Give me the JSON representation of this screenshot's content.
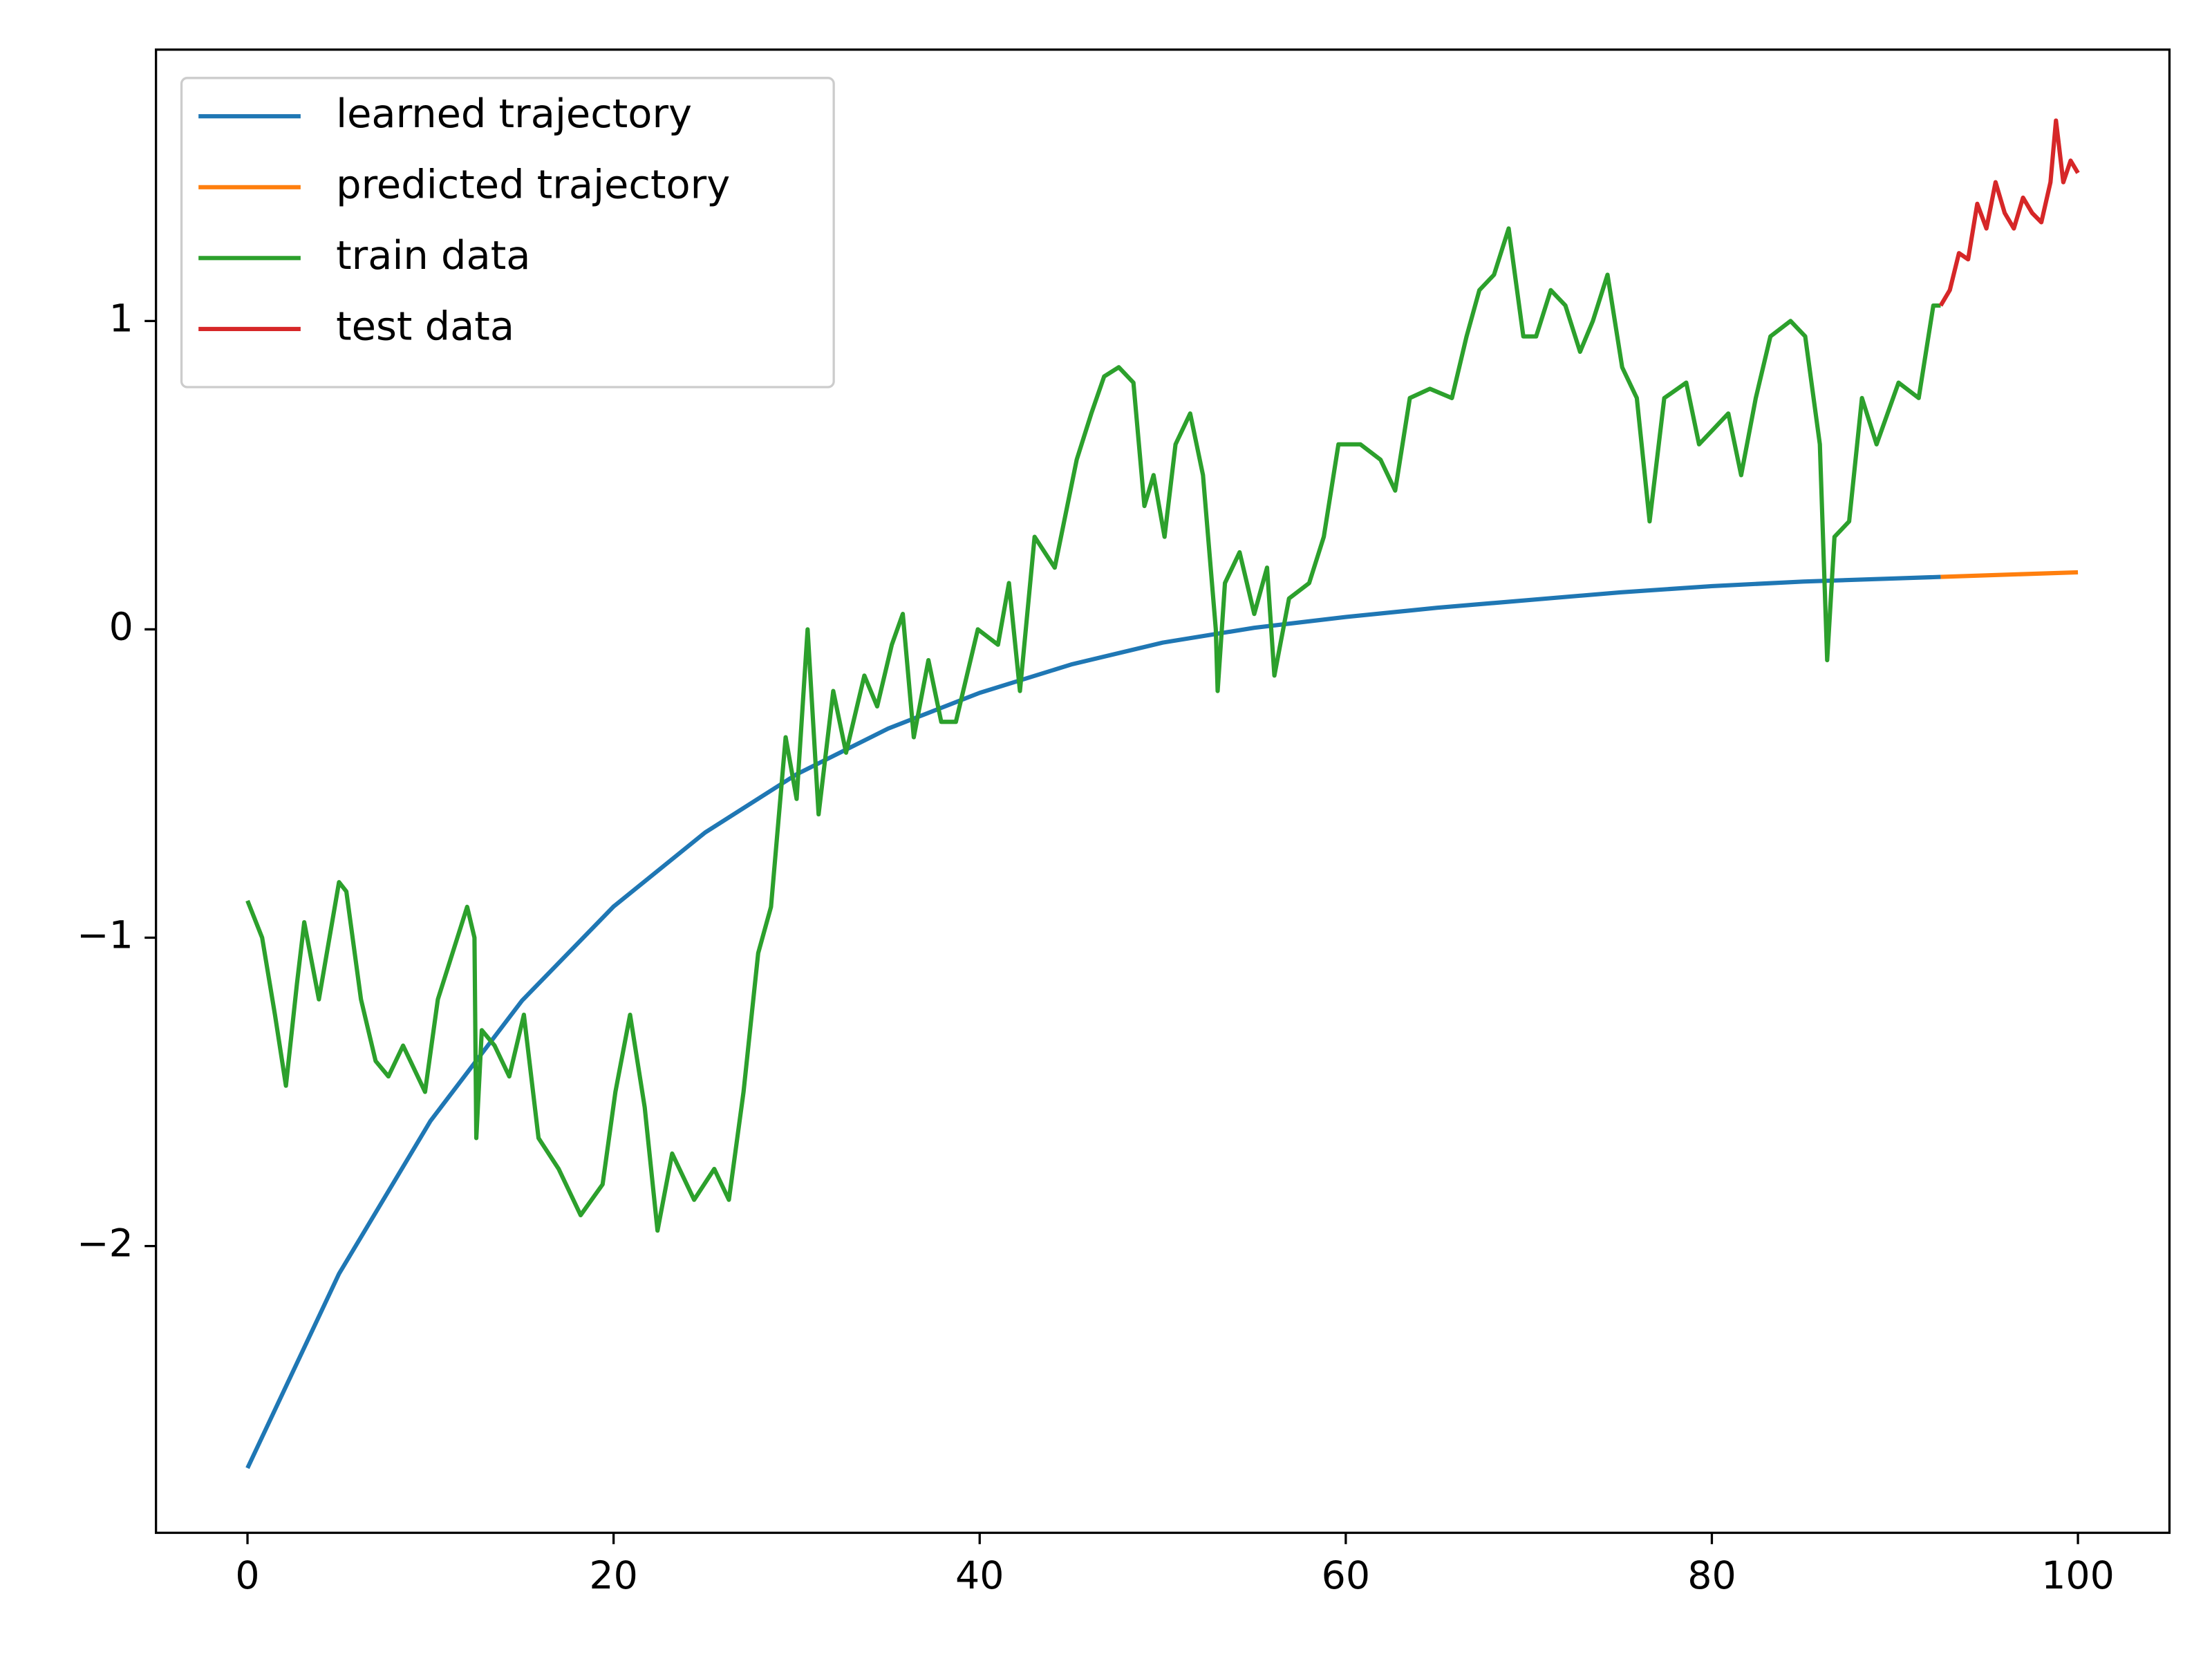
{
  "chart_data": {
    "type": "line",
    "xlim": [
      -5,
      105
    ],
    "ylim": [
      -2.93,
      1.88
    ],
    "xticks": [
      0,
      20,
      40,
      60,
      80,
      100
    ],
    "yticks": [
      {
        "value": -2,
        "label": "−2"
      },
      {
        "value": -1,
        "label": "−1"
      },
      0,
      1
    ],
    "grid": false,
    "legend": "upper left",
    "series": [
      {
        "name": "learned trajectory",
        "color": "#1f77b4",
        "x": [
          0,
          5,
          10,
          15,
          20,
          25,
          30,
          35,
          40,
          45,
          50,
          55,
          60,
          65,
          70,
          75,
          80,
          85,
          90,
          92.5
        ],
        "values": [
          -2.72,
          -2.09,
          -1.594,
          -1.204,
          -0.899,
          -0.659,
          -0.47,
          -0.322,
          -0.206,
          -0.114,
          -0.043,
          0.005,
          0.04,
          0.07,
          0.095,
          0.12,
          0.14,
          0.155,
          0.165,
          0.17
        ]
      },
      {
        "name": "predicted trajectory",
        "color": "#ff7f0e",
        "x": [
          92.5,
          100
        ],
        "values": [
          0.17,
          0.185
        ]
      },
      {
        "name": "train data",
        "color": "#2ca02c",
        "x": [
          0,
          0.8,
          1.5,
          2.1,
          2.7,
          3.1,
          3.9,
          5.0,
          5.4,
          6.2,
          7.0,
          7.7,
          8.5,
          9.7,
          10.4,
          11.2,
          12.0,
          12.4,
          12.5,
          12.8,
          13.5,
          14.3,
          15.1,
          15.9,
          17.0,
          18.2,
          19.4,
          20.1,
          20.9,
          21.7,
          22.4,
          23.2,
          24.4,
          25.5,
          26.3,
          27.1,
          27.9,
          28.6,
          29.4,
          30.0,
          30.6,
          31.2,
          32.0,
          32.7,
          33.7,
          34.4,
          35.2,
          35.8,
          36.4,
          37.2,
          37.9,
          38.7,
          39.9,
          41.0,
          41.6,
          42.2,
          43.0,
          44.1,
          45.3,
          46.1,
          46.8,
          47.6,
          48.4,
          49.0,
          49.5,
          50.1,
          50.7,
          51.5,
          52.2,
          52.9,
          53.0,
          53.4,
          54.2,
          55.0,
          55.7,
          56.1,
          56.9,
          58.0,
          58.8,
          59.6,
          60.8,
          61.9,
          62.7,
          63.5,
          64.6,
          65.8,
          66.6,
          67.3,
          68.1,
          68.9,
          69.7,
          70.4,
          71.2,
          72.0,
          72.8,
          73.5,
          74.3,
          75.1,
          75.9,
          76.6,
          77.4,
          78.6,
          79.3,
          80.1,
          80.9,
          81.6,
          82.4,
          83.2,
          84.3,
          85.1,
          85.9,
          86.3,
          86.7,
          87.5,
          88.2,
          89.0,
          90.2,
          91.3,
          92.1,
          92.5
        ],
        "values": [
          -0.88,
          -1.0,
          -1.25,
          -1.48,
          -1.15,
          -0.95,
          -1.2,
          -0.82,
          -0.85,
          -1.2,
          -1.4,
          -1.45,
          -1.35,
          -1.5,
          -1.2,
          -1.05,
          -0.9,
          -1.0,
          -1.65,
          -1.3,
          -1.35,
          -1.45,
          -1.25,
          -1.65,
          -1.75,
          -1.9,
          -1.8,
          -1.5,
          -1.25,
          -1.55,
          -1.95,
          -1.7,
          -1.85,
          -1.75,
          -1.85,
          -1.5,
          -1.05,
          -0.9,
          -0.35,
          -0.55,
          0.0,
          -0.6,
          -0.2,
          -0.4,
          -0.15,
          -0.25,
          -0.05,
          0.05,
          -0.35,
          -0.1,
          -0.3,
          -0.3,
          0.0,
          -0.05,
          0.15,
          -0.2,
          0.3,
          0.2,
          0.55,
          0.7,
          0.82,
          0.85,
          0.8,
          0.4,
          0.5,
          0.3,
          0.6,
          0.7,
          0.5,
          0.0,
          -0.2,
          0.15,
          0.25,
          0.05,
          0.2,
          -0.15,
          0.1,
          0.15,
          0.3,
          0.6,
          0.6,
          0.55,
          0.45,
          0.75,
          0.78,
          0.75,
          0.95,
          1.1,
          1.15,
          1.3,
          0.95,
          0.95,
          1.1,
          1.05,
          0.9,
          1.0,
          1.15,
          0.85,
          0.75,
          0.35,
          0.75,
          0.8,
          0.6,
          0.65,
          0.7,
          0.5,
          0.75,
          0.95,
          1.0,
          0.95,
          0.6,
          -0.1,
          0.3,
          0.35,
          0.75,
          0.6,
          0.8,
          0.75,
          1.05,
          1.05
        ]
      },
      {
        "name": "test data",
        "color": "#d62728",
        "x": [
          92.5,
          93,
          93.5,
          94,
          94.5,
          95,
          95.5,
          96,
          96.5,
          97,
          97.5,
          98,
          98.5,
          98.8,
          99.2,
          99.6,
          100
        ],
        "values": [
          1.05,
          1.1,
          1.22,
          1.2,
          1.38,
          1.3,
          1.45,
          1.35,
          1.3,
          1.4,
          1.35,
          1.32,
          1.45,
          1.65,
          1.45,
          1.52,
          1.48
        ]
      }
    ]
  }
}
